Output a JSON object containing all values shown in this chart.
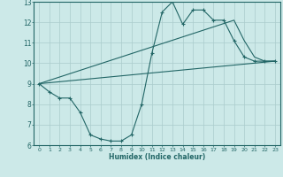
{
  "title": "",
  "xlabel": "Humidex (Indice chaleur)",
  "xlim": [
    -0.5,
    23.5
  ],
  "ylim": [
    6,
    13
  ],
  "yticks": [
    6,
    7,
    8,
    9,
    10,
    11,
    12,
    13
  ],
  "xticks": [
    0,
    1,
    2,
    3,
    4,
    5,
    6,
    7,
    8,
    9,
    10,
    11,
    12,
    13,
    14,
    15,
    16,
    17,
    18,
    19,
    20,
    21,
    22,
    23
  ],
  "bg_color": "#cce9e8",
  "grid_color": "#aacccc",
  "line_color": "#226666",
  "line1_x": [
    0,
    1,
    2,
    3,
    4,
    5,
    6,
    7,
    8,
    9,
    10,
    11,
    12,
    13,
    14,
    15,
    16,
    17,
    18,
    19,
    20,
    21,
    22,
    23
  ],
  "line1_y": [
    9.0,
    8.6,
    8.3,
    8.3,
    7.6,
    6.5,
    6.3,
    6.2,
    6.2,
    6.5,
    8.0,
    10.5,
    12.5,
    13.0,
    11.9,
    12.6,
    12.6,
    12.1,
    12.1,
    11.1,
    10.3,
    10.1,
    10.1,
    10.1
  ],
  "line2_x": [
    0,
    19,
    20,
    21,
    22,
    23
  ],
  "line2_y": [
    9.0,
    12.1,
    11.1,
    10.3,
    10.1,
    10.1
  ],
  "line3_x": [
    0,
    23
  ],
  "line3_y": [
    9.0,
    10.1
  ]
}
